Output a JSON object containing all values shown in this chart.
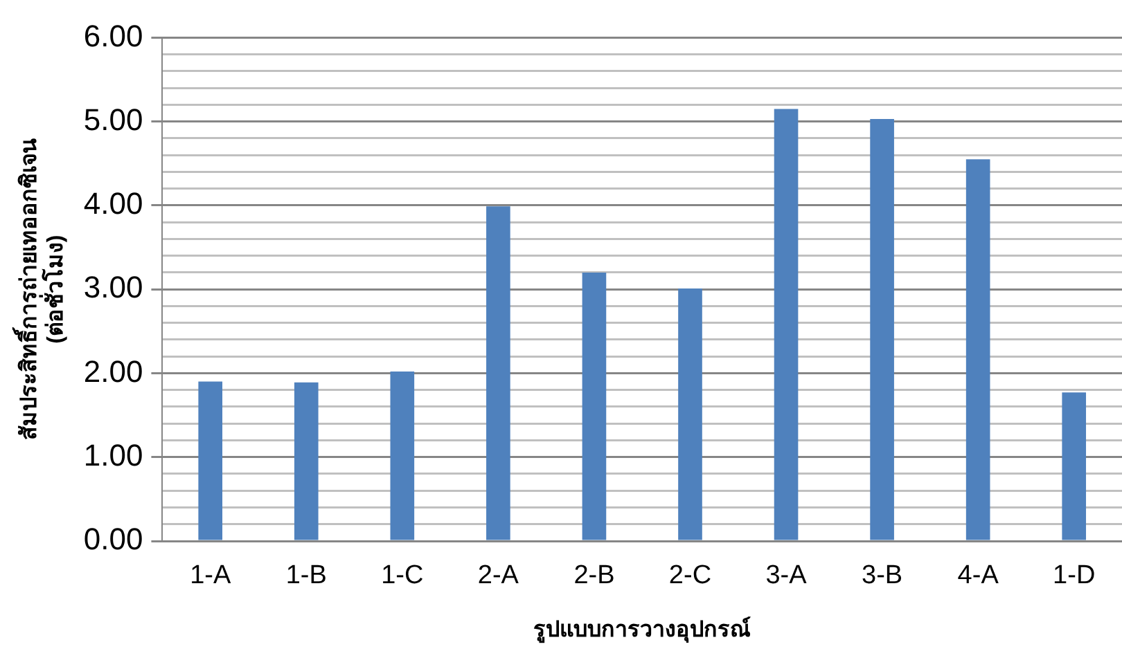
{
  "chart_data": {
    "type": "bar",
    "xlabel": "รูปแบบการวางอุปกรณ์",
    "ylabel": "สัมประสิทธิ์การถ่ายเทออกซิเจน\n(ต่อชั่วโมง)",
    "categories": [
      "1-A",
      "1-B",
      "1-C",
      "2-A",
      "2-B",
      "2-C",
      "3-A",
      "3-B",
      "4-A",
      "1-D"
    ],
    "values": [
      1.9,
      1.89,
      2.02,
      3.99,
      3.2,
      3.01,
      5.15,
      5.03,
      4.55,
      1.77
    ],
    "color": "#4f81bd",
    "ylim": [
      0,
      6
    ],
    "yticks": [
      {
        "value": 0,
        "label": "0.00"
      },
      {
        "value": 0.2,
        "label": null
      },
      {
        "value": 0.4,
        "label": null
      },
      {
        "value": 0.6,
        "label": null
      },
      {
        "value": 0.8,
        "label": null
      },
      {
        "value": 1,
        "label": "1.00"
      },
      {
        "value": 1.2,
        "label": null
      },
      {
        "value": 1.4,
        "label": null
      },
      {
        "value": 1.6,
        "label": null
      },
      {
        "value": 1.8,
        "label": null
      },
      {
        "value": 2,
        "label": "2.00"
      },
      {
        "value": 2.2,
        "label": null
      },
      {
        "value": 2.4,
        "label": null
      },
      {
        "value": 2.6,
        "label": null
      },
      {
        "value": 2.8,
        "label": null
      },
      {
        "value": 3,
        "label": "3.00"
      },
      {
        "value": 3.2,
        "label": null
      },
      {
        "value": 3.4,
        "label": null
      },
      {
        "value": 3.6,
        "label": null
      },
      {
        "value": 3.8,
        "label": null
      },
      {
        "value": 4,
        "label": "4.00"
      },
      {
        "value": 4.2,
        "label": null
      },
      {
        "value": 4.4,
        "label": null
      },
      {
        "value": 4.6,
        "label": null
      },
      {
        "value": 4.8,
        "label": null
      },
      {
        "value": 5,
        "label": "5.00"
      },
      {
        "value": 5.2,
        "label": null
      },
      {
        "value": 5.4,
        "label": null
      },
      {
        "value": 5.6,
        "label": null
      },
      {
        "value": 5.8,
        "label": null
      },
      {
        "value": 6,
        "label": "6.00"
      }
    ],
    "grid": "y"
  }
}
